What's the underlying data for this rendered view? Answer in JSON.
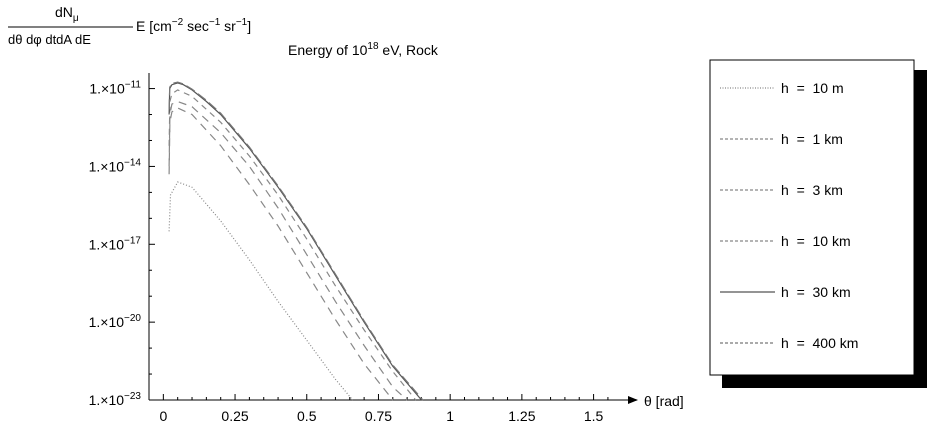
{
  "chart_data": {
    "type": "line",
    "ylabel": {
      "numerator_base": "dN",
      "numerator_sub": "μ",
      "denominator": "dθ dφ dtdA dE",
      "suffix_pre": "E [cm",
      "exp1": "−2",
      "mid1": " sec",
      "exp2": "−1",
      "mid2": " sr",
      "exp3": "−1",
      "close": "]"
    },
    "subtitle": {
      "pre": "Energy of 10",
      "exp": "18",
      "post": " eV, Rock"
    },
    "xlabel": "θ [rad]",
    "xlim": [
      -0.05,
      1.62
    ],
    "ylim_log10": [
      -23,
      -10.4
    ],
    "y_scale": "log",
    "xticks": [
      {
        "v": 0,
        "label": "0"
      },
      {
        "v": 0.25,
        "label": "0.25"
      },
      {
        "v": 0.5,
        "label": "0.5"
      },
      {
        "v": 0.75,
        "label": "0.75"
      },
      {
        "v": 1,
        "label": "1"
      },
      {
        "v": 1.25,
        "label": "1.25"
      },
      {
        "v": 1.5,
        "label": "1.5"
      }
    ],
    "yticks": [
      {
        "log": -11,
        "label": "1.×10",
        "exp": "−11"
      },
      {
        "log": -14,
        "label": "1.×10",
        "exp": "−14"
      },
      {
        "log": -17,
        "label": "1.×10",
        "exp": "−17"
      },
      {
        "log": -20,
        "label": "1.×10",
        "exp": "−20"
      },
      {
        "log": -23,
        "label": "1.×10",
        "exp": "−23"
      }
    ],
    "legend_position": "right",
    "series": [
      {
        "name": "h = 10 m",
        "dash": "1,2",
        "color": "#888888",
        "x": [
          0.02,
          0.025,
          0.05,
          0.1,
          0.2,
          0.3,
          0.4,
          0.5,
          0.6,
          0.66
        ],
        "log10y": [
          -16.5,
          -15.1,
          -14.6,
          -14.8,
          -16.1,
          -17.6,
          -19.2,
          -20.7,
          -22.2,
          -23.0
        ]
      },
      {
        "name": "h = 1 km",
        "dash": "8,6",
        "color": "#888888",
        "x": [
          0.02,
          0.023,
          0.03,
          0.05,
          0.1,
          0.2,
          0.3,
          0.4,
          0.5,
          0.6,
          0.7,
          0.8
        ],
        "log10y": [
          -14.3,
          -12.3,
          -11.9,
          -11.75,
          -12.0,
          -13.2,
          -14.7,
          -16.3,
          -18.1,
          -19.9,
          -21.6,
          -23.0
        ]
      },
      {
        "name": "h = 3 km",
        "dash": "8,6",
        "color": "#888888",
        "x": [
          0.02,
          0.023,
          0.03,
          0.05,
          0.1,
          0.2,
          0.3,
          0.4,
          0.5,
          0.6,
          0.7,
          0.8,
          0.85
        ],
        "log10y": [
          -14.0,
          -12.0,
          -11.6,
          -11.5,
          -11.7,
          -12.7,
          -14.0,
          -15.6,
          -17.4,
          -19.2,
          -20.9,
          -22.5,
          -23.0
        ]
      },
      {
        "name": "h = 10 km",
        "dash": "6,5",
        "color": "#888888",
        "x": [
          0.02,
          0.023,
          0.03,
          0.05,
          0.1,
          0.2,
          0.3,
          0.4,
          0.5,
          0.6,
          0.7,
          0.8,
          0.88
        ],
        "log10y": [
          -13.2,
          -11.5,
          -11.2,
          -11.05,
          -11.3,
          -12.3,
          -13.6,
          -15.1,
          -16.8,
          -18.6,
          -20.3,
          -21.9,
          -23.0
        ]
      },
      {
        "name": "h = 30 km",
        "dash": "",
        "color": "#555555",
        "x": [
          0.02,
          0.022,
          0.03,
          0.05,
          0.07,
          0.1,
          0.15,
          0.2,
          0.3,
          0.4,
          0.5,
          0.6,
          0.7,
          0.8,
          0.9
        ],
        "log10y": [
          -12.0,
          -11.0,
          -10.85,
          -10.78,
          -10.85,
          -11.05,
          -11.5,
          -12.0,
          -13.3,
          -14.8,
          -16.4,
          -18.2,
          -20.0,
          -21.7,
          -23.0
        ]
      },
      {
        "name": "h = 400 km",
        "dash": "10,4",
        "color": "#777777",
        "x": [
          0.02,
          0.022,
          0.03,
          0.05,
          0.07,
          0.1,
          0.15,
          0.2,
          0.3,
          0.4,
          0.5,
          0.6,
          0.7,
          0.8,
          0.905
        ],
        "log10y": [
          -11.8,
          -10.95,
          -10.8,
          -10.75,
          -10.82,
          -11.02,
          -11.45,
          -11.95,
          -13.25,
          -14.75,
          -16.35,
          -18.15,
          -19.95,
          -21.65,
          -23.0
        ]
      }
    ]
  }
}
